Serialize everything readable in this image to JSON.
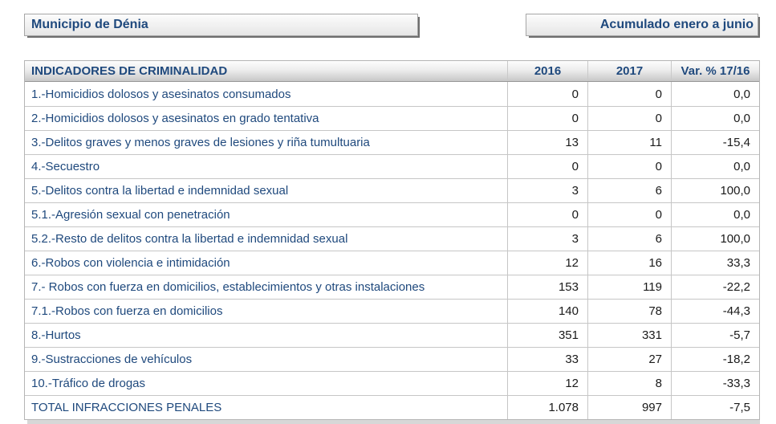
{
  "header": {
    "municipality_label": "Municipio de Dénia",
    "period_label": "Acumulado enero a junio"
  },
  "table": {
    "columns": [
      "INDICADORES DE CRIMINALIDAD",
      "2016",
      "2017",
      "Var. % 17/16"
    ],
    "rows": [
      {
        "label": "1.-Homicidios dolosos y asesinatos consumados",
        "y2016": "0",
        "y2017": "0",
        "var": "0,0"
      },
      {
        "label": "2.-Homicidios dolosos y asesinatos en grado tentativa",
        "y2016": "0",
        "y2017": "0",
        "var": "0,0"
      },
      {
        "label": "3.-Delitos graves y menos graves de lesiones y riña tumultuaria",
        "y2016": "13",
        "y2017": "11",
        "var": "-15,4"
      },
      {
        "label": "4.-Secuestro",
        "y2016": "0",
        "y2017": "0",
        "var": "0,0"
      },
      {
        "label": "5.-Delitos contra la libertad e indemnidad sexual",
        "y2016": "3",
        "y2017": "6",
        "var": "100,0"
      },
      {
        "label": "5.1.-Agresión sexual con penetración",
        "y2016": "0",
        "y2017": "0",
        "var": "0,0"
      },
      {
        "label": "5.2.-Resto de delitos contra la libertad e indemnidad sexual",
        "y2016": "3",
        "y2017": "6",
        "var": "100,0"
      },
      {
        "label": "6.-Robos con violencia e intimidación",
        "y2016": "12",
        "y2017": "16",
        "var": "33,3"
      },
      {
        "label": "7.- Robos con fuerza en domicilios, establecimientos y otras instalaciones",
        "y2016": "153",
        "y2017": "119",
        "var": "-22,2"
      },
      {
        "label": "7.1.-Robos con fuerza en domicilios",
        "y2016": "140",
        "y2017": "78",
        "var": "-44,3"
      },
      {
        "label": "8.-Hurtos",
        "y2016": "351",
        "y2017": "331",
        "var": "-5,7"
      },
      {
        "label": "9.-Sustracciones de vehículos",
        "y2016": "33",
        "y2017": "27",
        "var": "-18,2"
      },
      {
        "label": "10.-Tráfico de drogas",
        "y2016": "12",
        "y2017": "8",
        "var": "-33,3"
      },
      {
        "label": "TOTAL INFRACCIONES PENALES",
        "y2016": "1.078",
        "y2017": "997",
        "var": "-7,5",
        "total": true
      }
    ]
  },
  "colors": {
    "accent_navy": "#1F497D",
    "number_text": "#1a1a1a",
    "grid_line": "#c6c6c6"
  }
}
